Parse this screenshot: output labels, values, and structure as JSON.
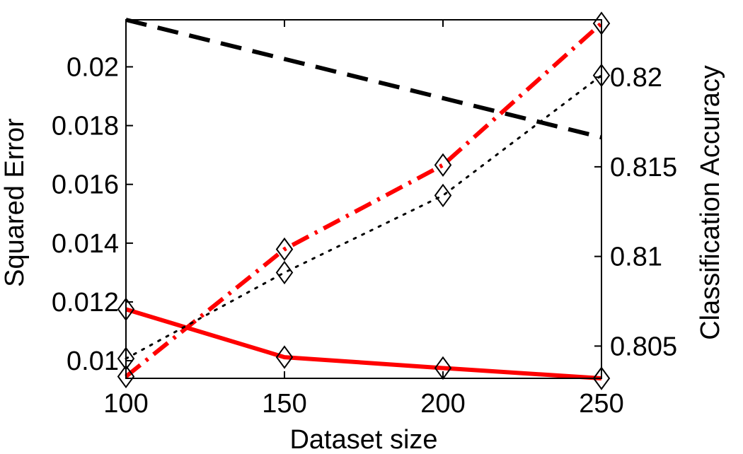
{
  "chart_data": {
    "type": "line",
    "xlabel": "Dataset size",
    "ylabel_left": "Squared Error",
    "ylabel_right": "Classification Accuracy",
    "xlim": [
      100,
      250
    ],
    "ylim_left": [
      0.0094,
      0.0216
    ],
    "ylim_right": [
      0.8032,
      0.8232
    ],
    "x_ticks": [
      100,
      150,
      200,
      250
    ],
    "x_tick_labels": [
      "100",
      "150",
      "200",
      "250"
    ],
    "y_left_ticks": [
      0.01,
      0.012,
      0.014,
      0.016,
      0.018,
      0.02
    ],
    "y_left_tick_labels": [
      "0.01",
      "0.012",
      "0.014",
      "0.016",
      "0.018",
      "0.02"
    ],
    "y_right_ticks": [
      0.805,
      0.81,
      0.815,
      0.82
    ],
    "y_right_tick_labels": [
      "0.805",
      "0.81",
      "0.815",
      "0.82"
    ],
    "grid": false,
    "series": [
      {
        "axis": "left",
        "color": "#ff0000",
        "line_style": "solid",
        "marker": "diamond",
        "x": [
          100,
          150,
          200,
          250
        ],
        "values": [
          0.01175,
          0.01012,
          0.00975,
          0.0094
        ]
      },
      {
        "axis": "left",
        "color": "#000000",
        "line_style": "dashed",
        "marker": "none",
        "x": [
          100,
          250
        ],
        "values": [
          0.0216,
          0.0176
        ]
      },
      {
        "axis": "right",
        "color": "#ff0000",
        "line_style": "dashdot",
        "marker": "diamond",
        "x": [
          100,
          150,
          200,
          250
        ],
        "values": [
          0.8033,
          0.8104,
          0.8151,
          0.823
        ]
      },
      {
        "axis": "right",
        "color": "#000000",
        "line_style": "dotted",
        "marker": "diamond",
        "x": [
          100,
          150,
          200,
          250
        ],
        "values": [
          0.8043,
          0.8091,
          0.8134,
          0.8201
        ]
      }
    ]
  }
}
